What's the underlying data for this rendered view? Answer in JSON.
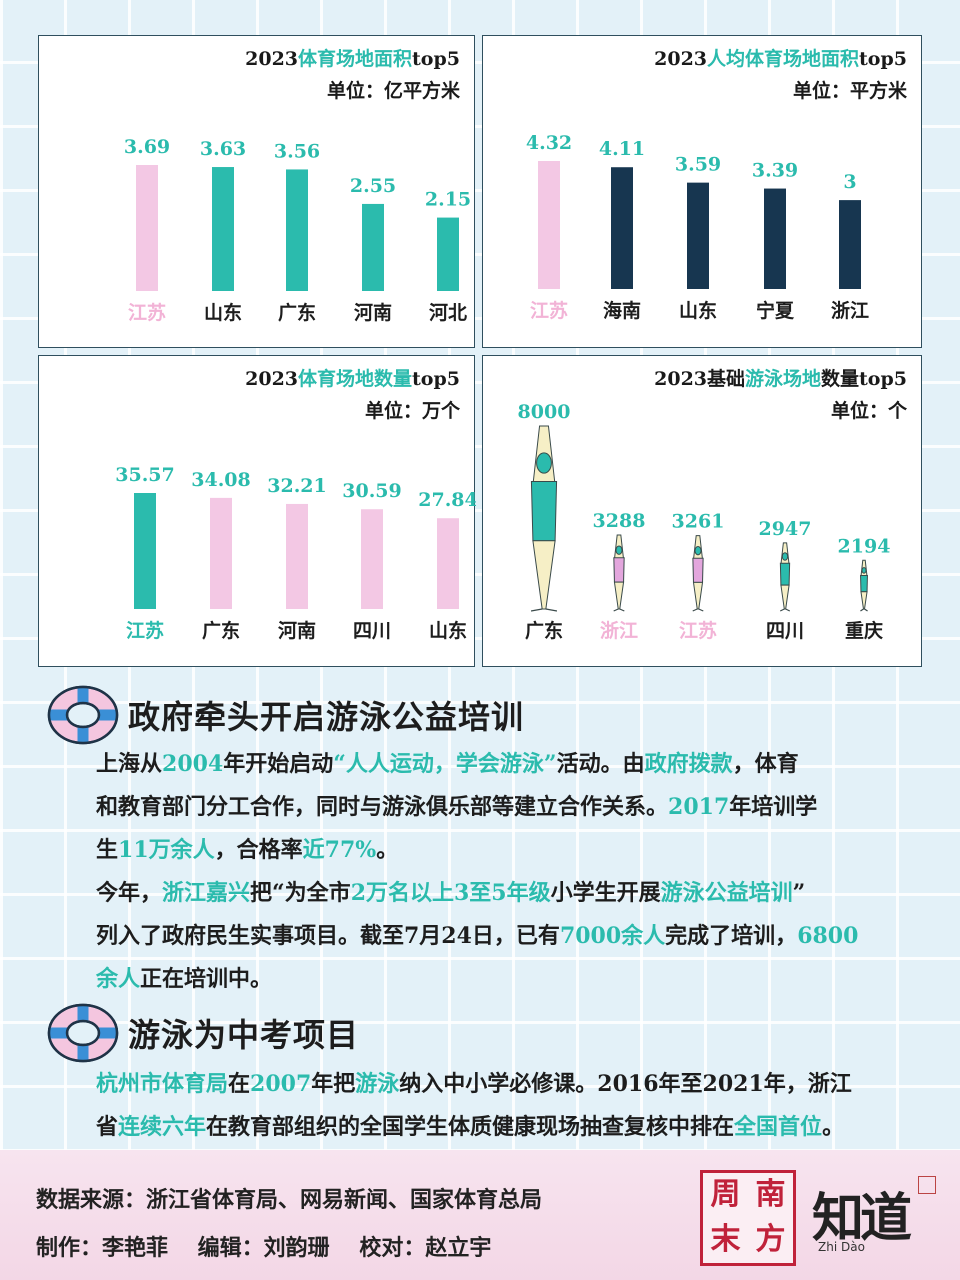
{
  "chart_data": [
    {
      "type": "bar",
      "title_parts": [
        {
          "text": "2023",
          "hl": false
        },
        {
          "text": "体育场地面积",
          "hl": true
        },
        {
          "text": "top5",
          "hl": false
        }
      ],
      "unit": "单位：亿平方米",
      "categories": [
        "江苏",
        "山东",
        "广东",
        "河南",
        "河北"
      ],
      "values": [
        3.69,
        3.63,
        3.56,
        2.55,
        2.15
      ],
      "value_labels": [
        "3.69",
        "3.63",
        "3.56",
        "2.55",
        "2.15"
      ],
      "highlight": [
        true,
        false,
        false,
        false,
        false
      ]
    },
    {
      "type": "bar",
      "title_parts": [
        {
          "text": "2023",
          "hl": false
        },
        {
          "text": "人均体育场地面积",
          "hl": true
        },
        {
          "text": "top5",
          "hl": false
        }
      ],
      "unit": "单位：平方米",
      "categories": [
        "江苏",
        "海南",
        "山东",
        "宁夏",
        "浙江"
      ],
      "values": [
        4.32,
        4.11,
        3.59,
        3.39,
        3
      ],
      "value_labels": [
        "4.32",
        "4.11",
        "3.59",
        "3.39",
        "3"
      ],
      "highlight": [
        true,
        false,
        false,
        false,
        false
      ]
    },
    {
      "type": "bar",
      "title_parts": [
        {
          "text": "2023",
          "hl": false
        },
        {
          "text": "体育场地数量",
          "hl": true
        },
        {
          "text": "top5",
          "hl": false
        }
      ],
      "unit": "单位：万个",
      "categories": [
        "江苏",
        "广东",
        "河南",
        "四川",
        "山东"
      ],
      "values": [
        35.57,
        34.08,
        32.21,
        30.59,
        27.84
      ],
      "value_labels": [
        "35.57",
        "34.08",
        "32.21",
        "30.59",
        "27.84"
      ],
      "highlight": [
        true,
        false,
        false,
        false,
        false
      ]
    },
    {
      "type": "bar",
      "title_parts": [
        {
          "text": "2023基础",
          "hl": false
        },
        {
          "text": "游泳场地",
          "hl": true
        },
        {
          "text": "数量top5",
          "hl": false
        }
      ],
      "unit": "单位：个",
      "categories": [
        "广东",
        "浙江",
        "江苏",
        "四川",
        "重庆"
      ],
      "values": [
        8000,
        3288,
        3261,
        2947,
        2194
      ],
      "value_labels": [
        "8000",
        "3288",
        "3261",
        "2947",
        "2194"
      ],
      "highlight": [
        false,
        true,
        true,
        false,
        false
      ]
    }
  ],
  "colors": {
    "teal": "#2bbbad",
    "pink": "#f3c8e4",
    "navy": "#173650",
    "label_pink": "#f2b3d6"
  },
  "section1": {
    "title": "政府牵头开启游泳公益培训",
    "lines": [
      [
        {
          "t": "上海从",
          "h": false
        },
        {
          "t": "2004",
          "h": true
        },
        {
          "t": "年开始启动",
          "h": false
        },
        {
          "t": "“人人运动，学会游泳”",
          "h": true
        },
        {
          "t": "活动。由",
          "h": false
        },
        {
          "t": "政府拨款",
          "h": true
        },
        {
          "t": "，体育",
          "h": false
        }
      ],
      [
        {
          "t": "和教育部门分工合作，同时与游泳俱乐部等建立合作关系。",
          "h": false
        },
        {
          "t": "2017",
          "h": true
        },
        {
          "t": "年培训学",
          "h": false
        }
      ],
      [
        {
          "t": "生",
          "h": false
        },
        {
          "t": "11万余人",
          "h": true
        },
        {
          "t": "，合格率",
          "h": false
        },
        {
          "t": "近77%",
          "h": true
        },
        {
          "t": "。",
          "h": false
        }
      ],
      [
        {
          "t": "今年，",
          "h": false
        },
        {
          "t": "浙江嘉兴",
          "h": true
        },
        {
          "t": "把“为全市",
          "h": false
        },
        {
          "t": "2万名以上3至5年级",
          "h": true
        },
        {
          "t": "小学生开展",
          "h": false
        },
        {
          "t": "游泳公益培训",
          "h": true
        },
        {
          "t": "”",
          "h": false
        }
      ],
      [
        {
          "t": "列入了政府民生实事项目。截至7月24日，已有",
          "h": false
        },
        {
          "t": "7000余人",
          "h": true
        },
        {
          "t": "完成了培训，",
          "h": false
        },
        {
          "t": "6800",
          "h": true
        }
      ],
      [
        {
          "t": "余人",
          "h": true
        },
        {
          "t": "正在培训中。",
          "h": false
        }
      ]
    ]
  },
  "section2": {
    "title": "游泳为中考项目",
    "lines": [
      [
        {
          "t": "杭州市体育局",
          "h": true
        },
        {
          "t": "在",
          "h": false
        },
        {
          "t": "2007",
          "h": true
        },
        {
          "t": "年把",
          "h": false
        },
        {
          "t": "游泳",
          "h": true
        },
        {
          "t": "纳入中小学必修课。2016年至2021年，浙江",
          "h": false
        }
      ],
      [
        {
          "t": "省",
          "h": false
        },
        {
          "t": "连续六年",
          "h": true
        },
        {
          "t": "在教育部组织的全国学生体质健康现场抽查复核中排在",
          "h": false
        },
        {
          "t": "全国首位",
          "h": true
        },
        {
          "t": "。",
          "h": false
        }
      ]
    ]
  },
  "footer": {
    "source": "数据来源：浙江省体育局、网易新闻、国家体育总局",
    "credits": "制作：李艳菲　 编辑：刘韵珊　 校对：赵立宇",
    "logo1_chars": [
      "周",
      "南",
      "末",
      "方"
    ],
    "logo2_text": "知道",
    "logo2_sub": "Zhi Dào"
  }
}
